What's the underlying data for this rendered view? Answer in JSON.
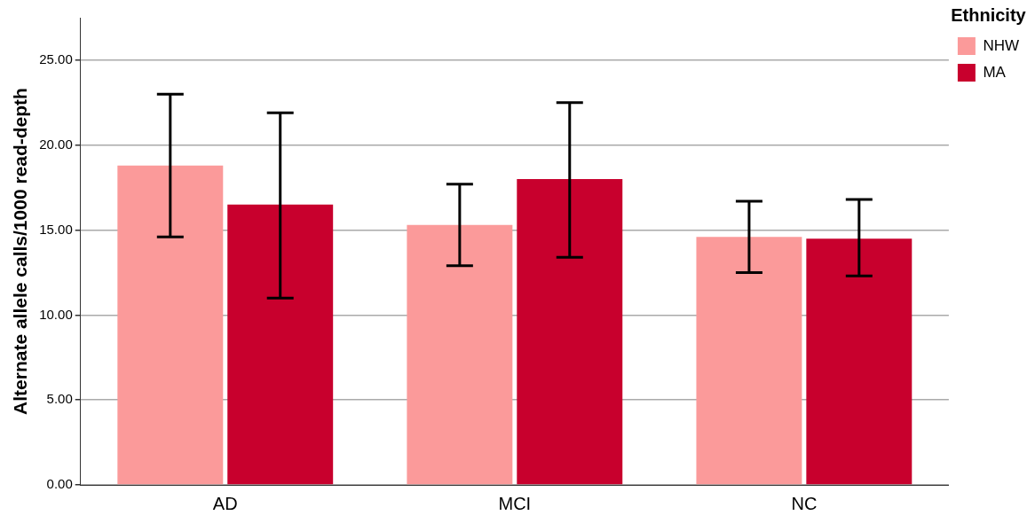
{
  "chart_data": {
    "type": "bar",
    "ylabel": "Alternate allele calls/1000 read-depth",
    "legend_title": "Ethnicity",
    "categories": [
      "AD",
      "MCI",
      "NC"
    ],
    "series": [
      {
        "name": "NHW",
        "color": "#fb9a9a",
        "values": [
          18.8,
          15.3,
          14.6
        ],
        "errors": [
          [
            14.6,
            23.0
          ],
          [
            12.9,
            17.7
          ],
          [
            12.5,
            16.7
          ]
        ]
      },
      {
        "name": "MA",
        "color": "#c8002d",
        "values": [
          16.5,
          18.0,
          14.5
        ],
        "errors": [
          [
            11.0,
            21.9
          ],
          [
            13.4,
            22.5
          ],
          [
            12.3,
            16.8
          ]
        ]
      }
    ],
    "ylim": [
      0,
      27.5
    ],
    "yticks": [
      {
        "value": 0,
        "label": "0.00"
      },
      {
        "value": 5,
        "label": "5.00"
      },
      {
        "value": 10,
        "label": "10.00"
      },
      {
        "value": 15,
        "label": "15.00"
      },
      {
        "value": 20,
        "label": "20.00"
      },
      {
        "value": 25,
        "label": "25.00"
      }
    ],
    "grid": "y",
    "legend": "top right"
  }
}
